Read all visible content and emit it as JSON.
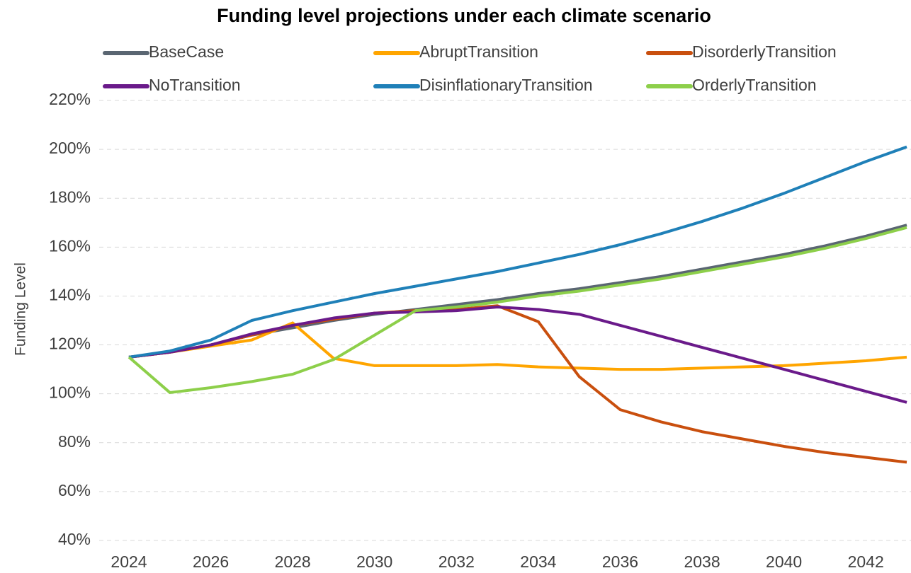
{
  "chart_data": {
    "type": "line",
    "title": "Funding level projections under each climate scenario",
    "ylabel": "Funding Level",
    "x": [
      2024,
      2025,
      2026,
      2027,
      2028,
      2029,
      2030,
      2031,
      2032,
      2033,
      2034,
      2035,
      2036,
      2037,
      2038,
      2039,
      2040,
      2041,
      2042,
      2043
    ],
    "xlim": [
      2024,
      2043
    ],
    "xticks": [
      2024,
      2026,
      2028,
      2030,
      2032,
      2034,
      2036,
      2038,
      2040,
      2042
    ],
    "ylim": [
      40,
      220
    ],
    "yticks": [
      {
        "value": 40,
        "label": "40%"
      },
      {
        "value": 60,
        "label": "60%"
      },
      {
        "value": 80,
        "label": "80%"
      },
      {
        "value": 100,
        "label": "100%"
      },
      {
        "value": 120,
        "label": "120%"
      },
      {
        "value": 140,
        "label": "140%"
      },
      {
        "value": 160,
        "label": "160%"
      },
      {
        "value": 180,
        "label": "180%"
      },
      {
        "value": 200,
        "label": "200%"
      },
      {
        "value": 220,
        "label": "220%"
      }
    ],
    "grid": true,
    "series": [
      {
        "name": "BaseCase",
        "color": "#5a6672",
        "values": [
          115,
          117,
          120,
          124,
          127,
          130,
          132.5,
          134.5,
          136.5,
          138.5,
          141,
          143,
          145.5,
          148,
          151,
          154,
          157,
          160.5,
          164.5,
          169
        ]
      },
      {
        "name": "AbruptTransition",
        "color": "#ffa500",
        "values": [
          115,
          117,
          119.5,
          122,
          129,
          114.5,
          111.5,
          111.5,
          111.5,
          112,
          111,
          110.5,
          110,
          110,
          110.5,
          111,
          111.5,
          112.5,
          113.5,
          115
        ]
      },
      {
        "name": "DisorderlyTransition",
        "color": "#c94f0e",
        "values": [
          115,
          117,
          120,
          124,
          128,
          130.5,
          133,
          134,
          134.5,
          136,
          129.5,
          107,
          93.5,
          88.5,
          84.5,
          81.5,
          78.5,
          76,
          74,
          72
        ]
      },
      {
        "name": "NoTransition",
        "color": "#6a1a8a",
        "values": [
          115,
          117,
          120,
          124.5,
          128,
          131,
          133,
          133.5,
          134,
          135.5,
          134.5,
          132.5,
          128,
          123.5,
          119,
          114.5,
          110,
          105.5,
          101,
          96.5
        ]
      },
      {
        "name": "DisinflationaryTransition",
        "color": "#1f80b8",
        "values": [
          115,
          117.5,
          122,
          130,
          134,
          137.5,
          141,
          144,
          147,
          150,
          153.5,
          157,
          161,
          165.5,
          170.5,
          176,
          182,
          188.5,
          195,
          201
        ]
      },
      {
        "name": "OrderlyTransition",
        "color": "#8dcf4a",
        "values": [
          115,
          100.5,
          102.5,
          105,
          108,
          114,
          124,
          134,
          135.5,
          137.5,
          140,
          142,
          144.5,
          147,
          150,
          153,
          156,
          159.5,
          163.5,
          168
        ]
      }
    ]
  }
}
